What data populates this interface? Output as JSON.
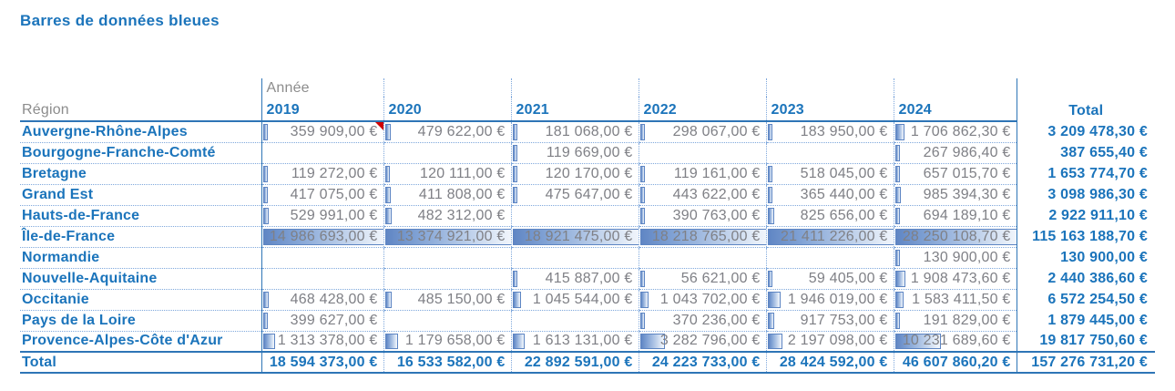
{
  "title": "Barres de données bleues",
  "colors": {
    "accent": "#1B74BB",
    "solid_border": "#2E75B6",
    "dotted_border": "#7FA8DC",
    "bar_fill": "#6086C4",
    "bar_border": "#5D85C3",
    "value_text": "#7F8086",
    "gray_label": "#8C8C8C",
    "comment_red": "#D00000"
  },
  "table": {
    "field_row_label": "Année",
    "row_header_label": "Région",
    "col_headers": [
      "2019",
      "2020",
      "2021",
      "2022",
      "2023",
      "2024"
    ],
    "total_col_label": "Total",
    "total_row_label": "Total",
    "column_max": [
      14986693,
      13374921,
      18921475,
      18218765,
      21411226,
      28250108.7
    ],
    "rows": [
      {
        "label": "Auvergne-Rhône-Alpes",
        "cells": [
          {
            "text": "359 909,00 €",
            "value": 359909,
            "comment": true
          },
          {
            "text": "479 622,00 €",
            "value": 479622
          },
          {
            "text": "181 068,00 €",
            "value": 181068
          },
          {
            "text": "298 067,00 €",
            "value": 298067
          },
          {
            "text": "183 950,00 €",
            "value": 183950
          },
          {
            "text": "1 706 862,30 €",
            "value": 1706862.3
          }
        ],
        "total": "3 209 478,30 €"
      },
      {
        "label": "Bourgogne-Franche-Comté",
        "cells": [
          null,
          null,
          {
            "text": "119 669,00 €",
            "value": 119669
          },
          null,
          null,
          {
            "text": "267 986,40 €",
            "value": 267986.4
          }
        ],
        "total": "387 655,40 €"
      },
      {
        "label": "Bretagne",
        "cells": [
          {
            "text": "119 272,00 €",
            "value": 119272
          },
          {
            "text": "120 111,00 €",
            "value": 120111
          },
          {
            "text": "120 170,00 €",
            "value": 120170
          },
          {
            "text": "119 161,00 €",
            "value": 119161
          },
          {
            "text": "518 045,00 €",
            "value": 518045
          },
          {
            "text": "657 015,70 €",
            "value": 657015.7
          }
        ],
        "total": "1 653 774,70 €"
      },
      {
        "label": "Grand Est",
        "cells": [
          {
            "text": "417 075,00 €",
            "value": 417075
          },
          {
            "text": "411 808,00 €",
            "value": 411808
          },
          {
            "text": "475 647,00 €",
            "value": 475647
          },
          {
            "text": "443 622,00 €",
            "value": 443622
          },
          {
            "text": "365 440,00 €",
            "value": 365440
          },
          {
            "text": "985 394,30 €",
            "value": 985394.3
          }
        ],
        "total": "3 098 986,30 €"
      },
      {
        "label": "Hauts-de-France",
        "cells": [
          {
            "text": "529 991,00 €",
            "value": 529991
          },
          {
            "text": "482 312,00 €",
            "value": 482312
          },
          null,
          {
            "text": "390 763,00 €",
            "value": 390763
          },
          {
            "text": "825 656,00 €",
            "value": 825656
          },
          {
            "text": "694 189,10 €",
            "value": 694189.1
          }
        ],
        "total": "2 922 911,10 €"
      },
      {
        "label": "Île-de-France",
        "cells": [
          {
            "text": "14 986 693,00 €",
            "value": 14986693
          },
          {
            "text": "13 374 921,00 €",
            "value": 13374921
          },
          {
            "text": "18 921 475,00 €",
            "value": 18921475
          },
          {
            "text": "18 218 765,00 €",
            "value": 18218765
          },
          {
            "text": "21 411 226,00 €",
            "value": 21411226
          },
          {
            "text": "28 250 108,70 €",
            "value": 28250108.7
          }
        ],
        "total": "115 163 188,70 €"
      },
      {
        "label": "Normandie",
        "cells": [
          null,
          null,
          null,
          null,
          null,
          {
            "text": "130 900,00 €",
            "value": 130900
          }
        ],
        "total": "130 900,00 €"
      },
      {
        "label": "Nouvelle-Aquitaine",
        "cells": [
          null,
          null,
          {
            "text": "415 887,00 €",
            "value": 415887
          },
          {
            "text": "56 621,00 €",
            "value": 56621
          },
          {
            "text": "59 405,00 €",
            "value": 59405
          },
          {
            "text": "1 908 473,60 €",
            "value": 1908473.6
          }
        ],
        "total": "2 440 386,60 €"
      },
      {
        "label": "Occitanie",
        "cells": [
          {
            "text": "468 428,00 €",
            "value": 468428
          },
          {
            "text": "485 150,00 €",
            "value": 485150
          },
          {
            "text": "1 045 544,00 €",
            "value": 1045544
          },
          {
            "text": "1 043 702,00 €",
            "value": 1043702
          },
          {
            "text": "1 946 019,00 €",
            "value": 1946019
          },
          {
            "text": "1 583 411,50 €",
            "value": 1583411.5
          }
        ],
        "total": "6 572 254,50 €"
      },
      {
        "label": "Pays de la Loire",
        "cells": [
          {
            "text": "399 627,00 €",
            "value": 399627
          },
          null,
          null,
          {
            "text": "370 236,00 €",
            "value": 370236
          },
          {
            "text": "917 753,00 €",
            "value": 917753
          },
          {
            "text": "191 829,00 €",
            "value": 191829
          }
        ],
        "total": "1 879 445,00 €"
      },
      {
        "label": "Provence-Alpes-Côte d'Azur",
        "cells": [
          {
            "text": "1 313 378,00 €",
            "value": 1313378
          },
          {
            "text": "1 179 658,00 €",
            "value": 1179658
          },
          {
            "text": "1 613 131,00 €",
            "value": 1613131
          },
          {
            "text": "3 282 796,00 €",
            "value": 3282796
          },
          {
            "text": "2 197 098,00 €",
            "value": 2197098
          },
          {
            "text": "10 231 689,60 €",
            "value": 10231689.6
          }
        ],
        "total": "19 817 750,60 €"
      }
    ],
    "totals_row": {
      "cells": [
        "18 594 373,00 €",
        "16 533 582,00 €",
        "22 892 591,00 €",
        "24 223 733,00 €",
        "28 424 592,00 €",
        "46 607 860,20 €"
      ],
      "total": "157 276 731,20 €"
    }
  }
}
